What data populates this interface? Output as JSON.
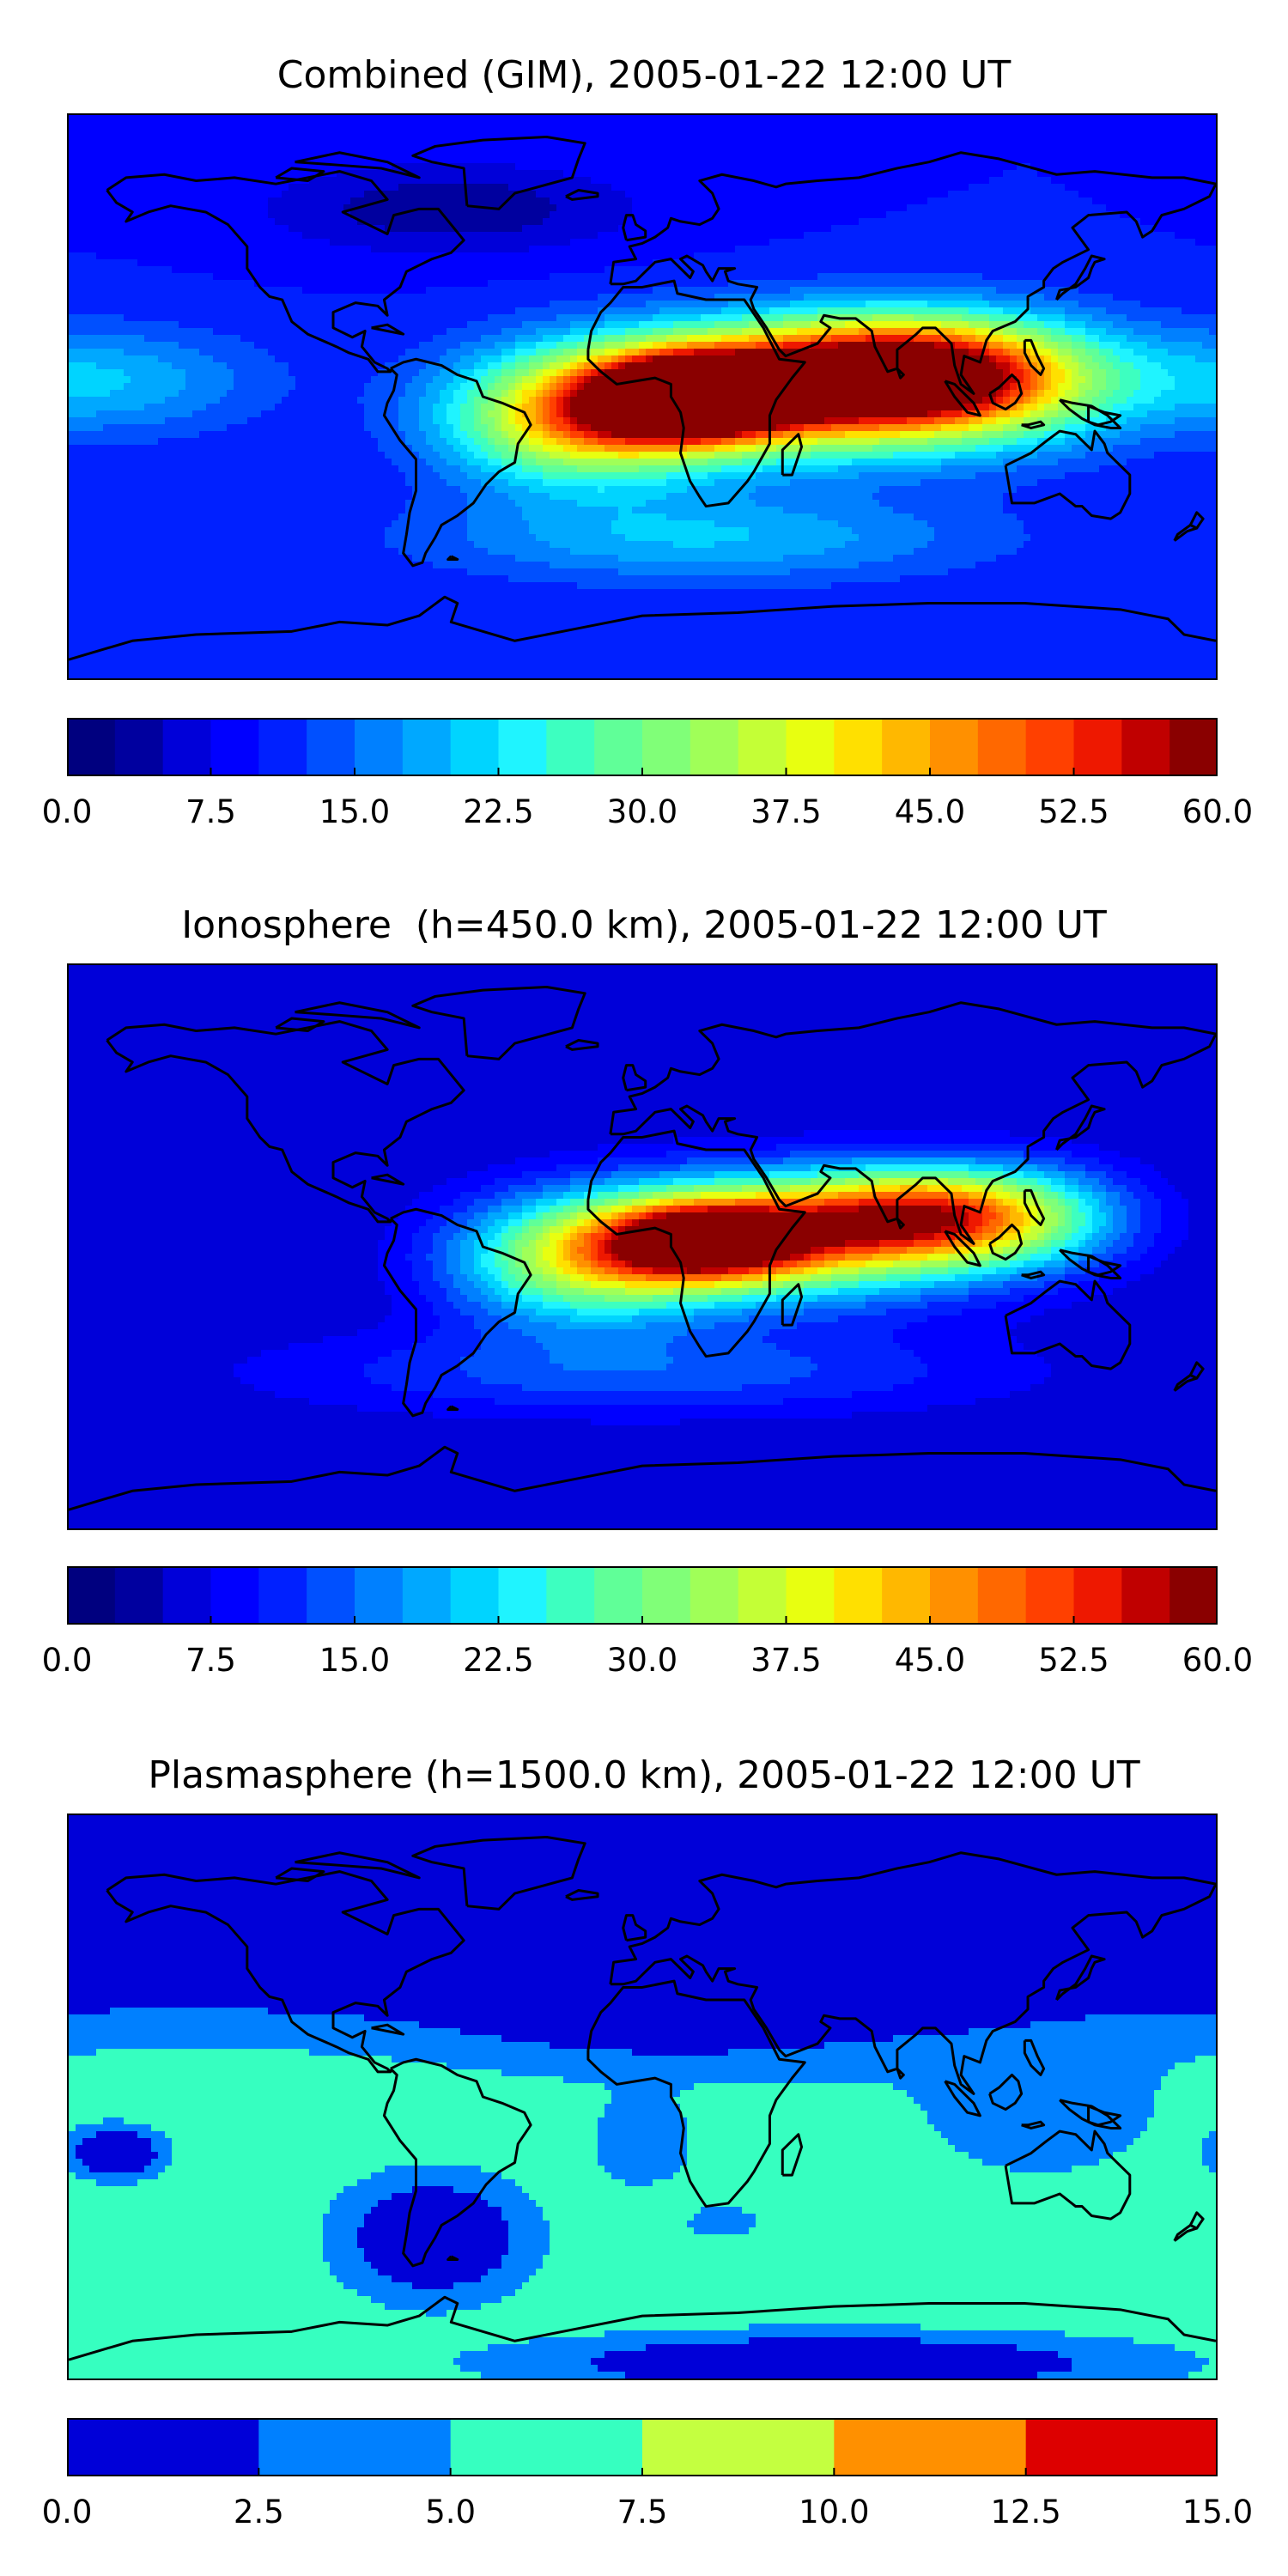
{
  "chart_data": [
    {
      "type": "heatmap",
      "title": "Combined (GIM), 2005-01-22 12:00 UT",
      "colorbar": {
        "min": 0,
        "max": 60,
        "levels": 24,
        "ticks": [
          "0.0",
          "7.5",
          "15.0",
          "22.5",
          "30.0",
          "37.5",
          "45.0",
          "52.5",
          "60.0"
        ],
        "colors": [
          "#00007f",
          "#00009f",
          "#0000d9",
          "#0000ff",
          "#0020ff",
          "#0050ff",
          "#0080ff",
          "#00a8ff",
          "#00d4ff",
          "#1ff4ff",
          "#3dffc0",
          "#60ff98",
          "#80ff78",
          "#a0ff58",
          "#c4ff36",
          "#e8ff10",
          "#ffe000",
          "#ffb800",
          "#ff9000",
          "#ff6800",
          "#ff4000",
          "#ee1800",
          "#c00000",
          "#8a0000"
        ]
      },
      "field": {
        "background_value": 10,
        "blobs": [
          {
            "lon": 15,
            "lat": 0,
            "value": 58,
            "rlon": 20,
            "rlat": 9
          },
          {
            "lon": 40,
            "lat": 2,
            "value": 50,
            "rlon": 45,
            "rlat": 14
          },
          {
            "lon": 80,
            "lat": 8,
            "value": 44,
            "rlon": 32,
            "rlat": 12
          },
          {
            "lon": -20,
            "lat": -8,
            "value": 38,
            "rlon": 28,
            "rlat": 14
          },
          {
            "lon": 110,
            "lat": 5,
            "value": 28,
            "rlon": 30,
            "rlat": 14
          },
          {
            "lon": -170,
            "lat": 5,
            "value": 20,
            "rlon": 35,
            "rlat": 12
          },
          {
            "lon": 20,
            "lat": -45,
            "value": 20,
            "rlon": 60,
            "rlat": 10
          },
          {
            "lon": -60,
            "lat": 60,
            "value": 3,
            "rlon": 40,
            "rlat": 10
          }
        ]
      }
    },
    {
      "type": "heatmap",
      "title": "Ionosphere  (h=450.0 km), 2005-01-22 12:00 UT",
      "colorbar": {
        "min": 0,
        "max": 60,
        "levels": 24,
        "ticks": [
          "0.0",
          "7.5",
          "15.0",
          "22.5",
          "30.0",
          "37.5",
          "45.0",
          "52.5",
          "60.0"
        ],
        "colors": [
          "#00007f",
          "#00009f",
          "#0000d9",
          "#0000ff",
          "#0020ff",
          "#0050ff",
          "#0080ff",
          "#00a8ff",
          "#00d4ff",
          "#1ff4ff",
          "#3dffc0",
          "#60ff98",
          "#80ff78",
          "#a0ff58",
          "#c4ff36",
          "#e8ff10",
          "#ffe000",
          "#ffb800",
          "#ff9000",
          "#ff6800",
          "#ff4000",
          "#ee1800",
          "#c00000",
          "#8a0000"
        ]
      },
      "field": {
        "background_value": 5,
        "blobs": [
          {
            "lon": 20,
            "lat": 2,
            "value": 44,
            "rlon": 22,
            "rlat": 9
          },
          {
            "lon": 45,
            "lat": 3,
            "value": 38,
            "rlon": 45,
            "rlat": 14
          },
          {
            "lon": 85,
            "lat": 10,
            "value": 36,
            "rlon": 28,
            "rlat": 10
          },
          {
            "lon": -20,
            "lat": -5,
            "value": 30,
            "rlon": 28,
            "rlat": 14
          },
          {
            "lon": 120,
            "lat": 10,
            "value": 20,
            "rlon": 25,
            "rlat": 12
          },
          {
            "lon": 0,
            "lat": -40,
            "value": 14,
            "rlon": 80,
            "rlat": 10
          }
        ]
      }
    },
    {
      "type": "heatmap",
      "title": "Plasmasphere (h=1500.0 km), 2005-01-22 12:00 UT",
      "colorbar": {
        "min": 0,
        "max": 15,
        "levels": 6,
        "ticks": [
          "0.0",
          "2.5",
          "5.0",
          "7.5",
          "10.0",
          "12.5",
          "15.0"
        ],
        "colors": [
          "#0000d8",
          "#0080ff",
          "#36ffc0",
          "#c4ff40",
          "#ff9000",
          "#dd0000"
        ]
      },
      "field": {
        "background_value": 6.2,
        "blobs": [
          {
            "lon": -40,
            "lat": 65,
            "value": -6,
            "rlon": 120,
            "rlat": 22
          },
          {
            "lon": 120,
            "lat": 65,
            "value": -6,
            "rlon": 90,
            "rlat": 22
          },
          {
            "lon": 10,
            "lat": 45,
            "value": -5,
            "rlon": 50,
            "rlat": 18
          },
          {
            "lon": 125,
            "lat": -5,
            "value": 3.8,
            "rlon": 28,
            "rlat": 16
          },
          {
            "lon": 0,
            "lat": -15,
            "value": 2.8,
            "rlon": 10,
            "rlat": 9
          },
          {
            "lon": 25,
            "lat": -40,
            "value": 2.6,
            "rlon": 7,
            "rlat": 3
          },
          {
            "lon": -65,
            "lat": -45,
            "value": -2.8,
            "rlon": 18,
            "rlat": 12
          },
          {
            "lon": -165,
            "lat": -18,
            "value": -2.8,
            "rlon": 9,
            "rlat": 5
          },
          {
            "lon": 60,
            "lat": -85,
            "value": -2.0,
            "rlon": 60,
            "rlat": 6
          }
        ]
      }
    }
  ]
}
